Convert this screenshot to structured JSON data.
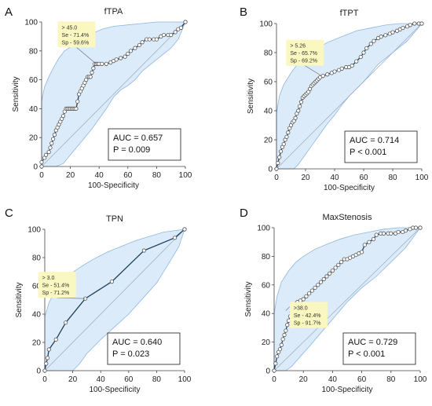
{
  "chart_data": [
    {
      "type": "line",
      "panel_label": "A",
      "title": "fTPA",
      "xlabel": "100-Specificity",
      "ylabel": "Sensitivity",
      "xlim": [
        0,
        100
      ],
      "ylim": [
        0,
        100
      ],
      "xticks": [
        0,
        20,
        40,
        60,
        80,
        100
      ],
      "yticks": [
        0,
        20,
        40,
        60,
        80,
        100
      ],
      "x": [
        0,
        0,
        2,
        3,
        5,
        6,
        7,
        8,
        9,
        10,
        11,
        12,
        13,
        14,
        15,
        16,
        17,
        18,
        19,
        20,
        21,
        22,
        23,
        24,
        25,
        26,
        27,
        28,
        29,
        30,
        31,
        32,
        33,
        34,
        35,
        36,
        37,
        38,
        39,
        40,
        42,
        45,
        48,
        50,
        52,
        55,
        58,
        60,
        62,
        65,
        68,
        70,
        73,
        75,
        78,
        80,
        83,
        85,
        88,
        90,
        93,
        95,
        97,
        100
      ],
      "y": [
        0,
        3,
        6,
        8,
        10,
        13,
        16,
        19,
        22,
        25,
        27,
        29,
        31,
        33,
        35,
        38,
        40,
        40,
        40,
        40,
        40,
        40,
        40,
        40,
        45,
        50,
        52,
        54,
        56,
        58,
        60,
        62,
        62,
        62,
        65,
        68,
        71,
        71,
        71,
        71,
        71,
        71,
        72,
        73,
        74,
        75,
        76,
        78,
        80,
        82,
        84,
        86,
        88,
        88,
        88,
        88,
        90,
        91,
        91,
        91,
        93,
        95,
        96,
        100
      ],
      "marker_count": 60,
      "ci_upper": [
        [
          0,
          45
        ],
        [
          2,
          55
        ],
        [
          5,
          62
        ],
        [
          8,
          68
        ],
        [
          12,
          75
        ],
        [
          16,
          80
        ],
        [
          22,
          84
        ],
        [
          28,
          88
        ],
        [
          35,
          92
        ],
        [
          42,
          95
        ],
        [
          50,
          97
        ],
        [
          60,
          98
        ],
        [
          70,
          99
        ],
        [
          80,
          100
        ],
        [
          90,
          100
        ],
        [
          100,
          100
        ]
      ],
      "ci_lower": [
        [
          0,
          0
        ],
        [
          10,
          0
        ],
        [
          15,
          2
        ],
        [
          20,
          8
        ],
        [
          25,
          14
        ],
        [
          30,
          20
        ],
        [
          35,
          26
        ],
        [
          40,
          33
        ],
        [
          45,
          40
        ],
        [
          50,
          48
        ],
        [
          55,
          53
        ],
        [
          60,
          56
        ],
        [
          65,
          60
        ],
        [
          70,
          66
        ],
        [
          80,
          74
        ],
        [
          90,
          82
        ],
        [
          95,
          88
        ],
        [
          100,
          100
        ]
      ],
      "annotation": [
        "> 45.0",
        "Se - 71.4%",
        "Sp - 59.6%"
      ],
      "annotation_pos": {
        "x": 38,
        "y": 71
      },
      "stats": [
        "AUC = 0.657",
        "P = 0.009"
      ]
    },
    {
      "type": "line",
      "panel_label": "B",
      "title": "fTPT",
      "xlabel": "100-Specificity",
      "ylabel": "Sensitivity",
      "xlim": [
        0,
        100
      ],
      "ylim": [
        0,
        100
      ],
      "xticks": [
        0,
        20,
        40,
        60,
        80,
        100
      ],
      "yticks": [
        0,
        20,
        40,
        60,
        80,
        100
      ],
      "x": [
        0,
        1,
        2,
        3,
        4,
        5,
        6,
        7,
        8,
        9,
        10,
        11,
        12,
        13,
        14,
        15,
        16,
        17,
        18,
        19,
        20,
        21,
        22,
        23,
        24,
        25,
        26,
        27,
        28,
        29,
        30,
        32,
        35,
        38,
        40,
        43,
        45,
        48,
        50,
        52,
        55,
        58,
        60,
        62,
        65,
        67,
        70,
        72,
        75,
        78,
        80,
        83,
        85,
        87,
        90,
        92,
        95,
        98,
        100
      ],
      "y": [
        0,
        4,
        8,
        12,
        15,
        17,
        20,
        22,
        25,
        28,
        30,
        32,
        33,
        35,
        38,
        40,
        43,
        46,
        49,
        50,
        51,
        52,
        53,
        55,
        57,
        58,
        59,
        60,
        61,
        62,
        63,
        64,
        65,
        66,
        67,
        68,
        69,
        70,
        70,
        71,
        74,
        77,
        80,
        83,
        86,
        88,
        90,
        91,
        92,
        93,
        94,
        95,
        96,
        97,
        98,
        99,
        100,
        100,
        100
      ],
      "marker_count": 60,
      "ci_upper": [
        [
          0,
          38
        ],
        [
          2,
          50
        ],
        [
          5,
          58
        ],
        [
          10,
          66
        ],
        [
          15,
          73
        ],
        [
          20,
          78
        ],
        [
          28,
          83
        ],
        [
          35,
          87
        ],
        [
          45,
          91
        ],
        [
          55,
          95
        ],
        [
          65,
          97
        ],
        [
          75,
          99
        ],
        [
          85,
          100
        ],
        [
          100,
          100
        ]
      ],
      "ci_lower": [
        [
          0,
          0
        ],
        [
          12,
          0
        ],
        [
          15,
          3
        ],
        [
          20,
          10
        ],
        [
          25,
          17
        ],
        [
          30,
          24
        ],
        [
          35,
          31
        ],
        [
          40,
          37
        ],
        [
          45,
          44
        ],
        [
          50,
          50
        ],
        [
          55,
          55
        ],
        [
          60,
          60
        ],
        [
          65,
          66
        ],
        [
          70,
          72
        ],
        [
          80,
          80
        ],
        [
          90,
          88
        ],
        [
          100,
          100
        ]
      ],
      "annotation": [
        "> 5.26",
        "Se - 65.7%",
        "Sp - 69.2%"
      ],
      "annotation_pos": {
        "x": 31,
        "y": 64
      },
      "stats": [
        "AUC = 0.714",
        "P < 0.001"
      ]
    },
    {
      "type": "line",
      "panel_label": "C",
      "title": "TPN",
      "xlabel": "100-Specificity",
      "ylabel": "Sensitivity",
      "xlim": [
        0,
        100
      ],
      "ylim": [
        0,
        100
      ],
      "xticks": [
        0,
        20,
        40,
        60,
        80,
        100
      ],
      "yticks": [
        0,
        20,
        40,
        60,
        80,
        100
      ],
      "x": [
        0,
        1,
        2,
        3,
        8,
        15,
        29,
        48,
        71,
        93,
        100
      ],
      "y": [
        0,
        5,
        9,
        15,
        22,
        34,
        51,
        63,
        85,
        94,
        100
      ],
      "marker_count": 11,
      "ci_upper": [
        [
          0,
          38
        ],
        [
          3,
          48
        ],
        [
          8,
          58
        ],
        [
          15,
          66
        ],
        [
          25,
          73
        ],
        [
          35,
          79
        ],
        [
          45,
          84
        ],
        [
          55,
          88
        ],
        [
          65,
          92
        ],
        [
          75,
          95
        ],
        [
          85,
          98
        ],
        [
          100,
          100
        ]
      ],
      "ci_lower": [
        [
          0,
          0
        ],
        [
          20,
          0
        ],
        [
          25,
          5
        ],
        [
          30,
          12
        ],
        [
          40,
          22
        ],
        [
          50,
          31
        ],
        [
          60,
          40
        ],
        [
          70,
          51
        ],
        [
          80,
          62
        ],
        [
          90,
          78
        ],
        [
          96,
          88
        ],
        [
          100,
          100
        ]
      ],
      "annotation": [
        "> 3.0",
        "Se - 51.4%",
        "Sp - 71.2%"
      ],
      "annotation_pos": {
        "x": 29,
        "y": 51
      },
      "stats": [
        "AUC = 0.640",
        "P = 0.023"
      ]
    },
    {
      "type": "line",
      "panel_label": "D",
      "title": "MaxStenosis",
      "xlabel": "100-Specificity",
      "ylabel": "Sensitivity",
      "xlim": [
        0,
        100
      ],
      "ylim": [
        0,
        100
      ],
      "xticks": [
        0,
        20,
        40,
        60,
        80,
        100
      ],
      "yticks": [
        0,
        20,
        40,
        60,
        80,
        100
      ],
      "x": [
        0,
        1,
        2,
        3,
        4,
        5,
        6,
        7,
        8,
        9,
        10,
        11,
        12,
        13,
        14,
        15,
        16,
        18,
        20,
        22,
        24,
        26,
        28,
        30,
        32,
        34,
        36,
        38,
        40,
        42,
        44,
        46,
        48,
        50,
        52,
        54,
        56,
        58,
        60,
        62,
        65,
        68,
        70,
        73,
        75,
        78,
        80,
        83,
        85,
        88,
        90,
        93,
        95,
        97,
        100
      ],
      "y": [
        0,
        5,
        10,
        13,
        15,
        18,
        22,
        25,
        28,
        32,
        35,
        38,
        41,
        43,
        45,
        47,
        48,
        49,
        50,
        52,
        54,
        56,
        58,
        60,
        62,
        64,
        66,
        68,
        70,
        72,
        74,
        76,
        78,
        78,
        79,
        80,
        81,
        82,
        83,
        88,
        90,
        92,
        95,
        96,
        96,
        96,
        96,
        96,
        97,
        97,
        98,
        99,
        100,
        100,
        100
      ],
      "marker_count": 55,
      "ci_upper": [
        [
          0,
          40
        ],
        [
          2,
          52
        ],
        [
          5,
          62
        ],
        [
          10,
          70
        ],
        [
          15,
          76
        ],
        [
          20,
          80
        ],
        [
          28,
          85
        ],
        [
          35,
          88
        ],
        [
          45,
          92
        ],
        [
          55,
          95
        ],
        [
          65,
          97
        ],
        [
          75,
          99
        ],
        [
          85,
          100
        ],
        [
          100,
          100
        ]
      ],
      "ci_lower": [
        [
          0,
          0
        ],
        [
          8,
          0
        ],
        [
          12,
          3
        ],
        [
          18,
          10
        ],
        [
          25,
          18
        ],
        [
          30,
          24
        ],
        [
          35,
          30
        ],
        [
          40,
          36
        ],
        [
          45,
          42
        ],
        [
          50,
          48
        ],
        [
          55,
          53
        ],
        [
          60,
          58
        ],
        [
          70,
          66
        ],
        [
          80,
          76
        ],
        [
          90,
          86
        ],
        [
          100,
          100
        ]
      ],
      "annotation": [
        ">38.0",
        "Se - 42.4%",
        "Sp - 91.7%"
      ],
      "annotation_pos": {
        "x": 8,
        "y": 42
      },
      "stats": [
        "AUC = 0.729",
        "P < 0.001"
      ]
    }
  ],
  "colors": {
    "ci_fill": "#dcebfa",
    "ci_stroke": "#8db6df",
    "curve": "#1f3f5f",
    "marker_fill": "#ffffff",
    "marker_stroke": "#555555",
    "diagonal": "#9aa8b6",
    "annotation_fill": "#fbf7c0"
  }
}
